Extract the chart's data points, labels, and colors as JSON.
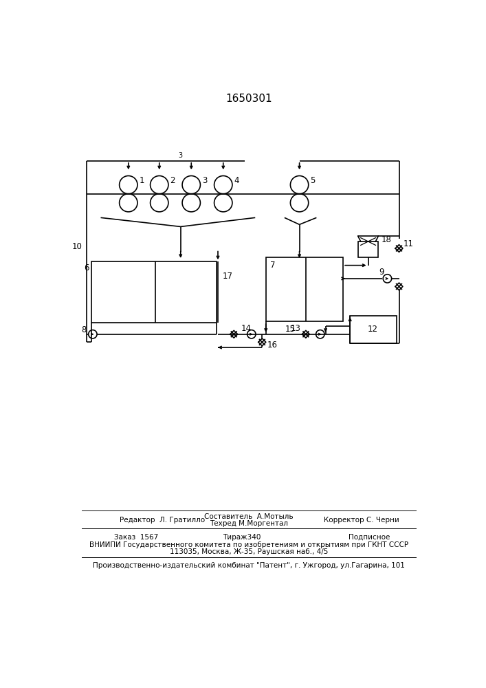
{
  "title": "1650301",
  "bg_color": "#ffffff",
  "line_color": "#000000",
  "footer_vnii": "ВНИИПИ Государственного комитета по изобретениям и открытиям при ГКНТ СССР",
  "footer_addr": "113035, Москва, Ж-35, Раушская наб., 4/5",
  "footer_patent": "Производственно-издательский комбинат \"Патент\", г. Ужгород, ул.Гагарина, 101"
}
